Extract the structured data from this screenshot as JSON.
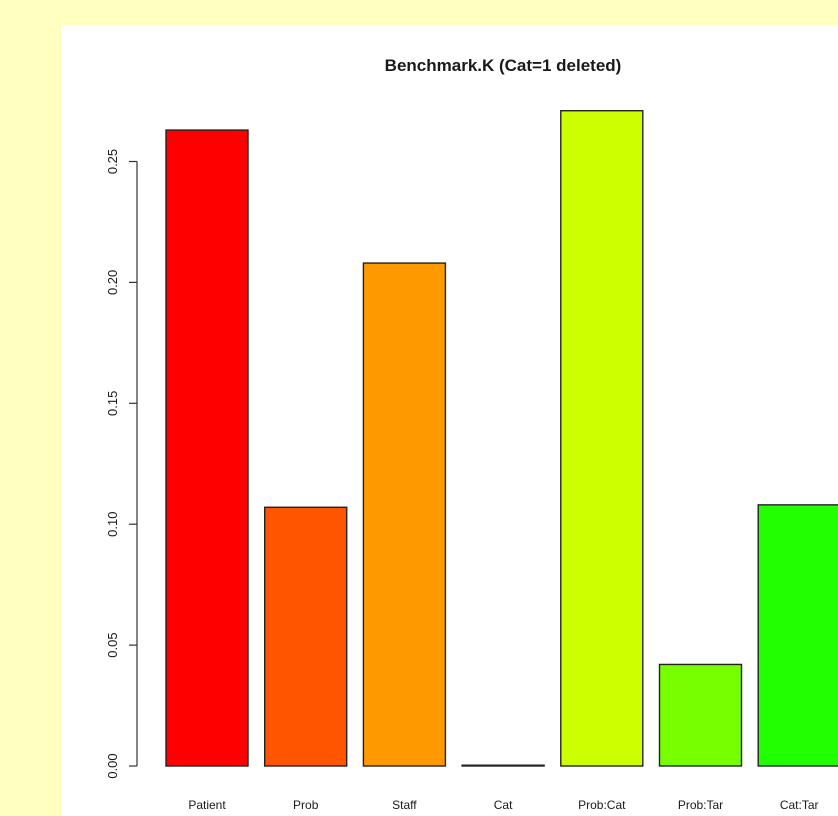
{
  "chart_data": {
    "type": "bar",
    "title": "Benchmark.K (Cat=1 deleted)",
    "xlabel": "",
    "ylabel": "",
    "categories": [
      "Patient",
      "Prob",
      "Staff",
      "Cat",
      "Prob:Cat",
      "Prob:Tar",
      "Cat:Tar"
    ],
    "values": [
      0.263,
      0.107,
      0.208,
      0.0,
      0.271,
      0.042,
      0.108
    ],
    "colors": [
      "#ff0000",
      "#ff5500",
      "#ff9900",
      "#ffffff",
      "#ccff00",
      "#77ff00",
      "#22ff00"
    ],
    "ylim": [
      0,
      0.27
    ],
    "yticks": [
      "0.00",
      "0.05",
      "0.10",
      "0.15",
      "0.20",
      "0.25"
    ],
    "grid": false
  },
  "colors": {
    "page_background": "#ffffc0",
    "plot_background": "#ffffff"
  }
}
